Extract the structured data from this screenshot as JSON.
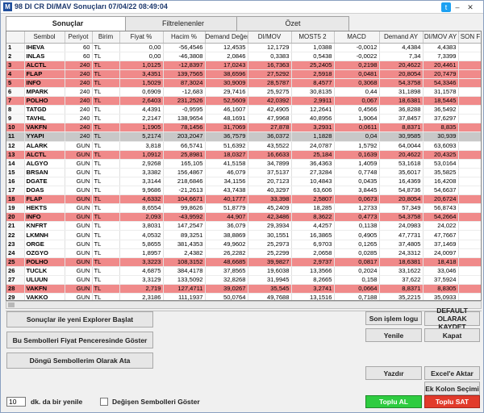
{
  "window": {
    "title": "98 DI CR DI/MAV Sonuçları  07/04/22 08:49:04",
    "logo": "M"
  },
  "tabs": [
    {
      "label": "Sonuçlar",
      "active": true
    },
    {
      "label": "Filtrelenenler",
      "active": false
    },
    {
      "label": "Özet",
      "active": false
    }
  ],
  "table": {
    "headers": [
      "",
      "Sembol",
      "Periyot",
      "Birim",
      "Fiyat %",
      "Hacim %",
      "Demand Değer",
      "DI/MOV",
      "MOST5 2",
      "MACD",
      "Demand AY",
      "DI/MOV AY",
      "SON F"
    ],
    "rows": [
      {
        "n": "1",
        "s": "IHEVA",
        "p": "60",
        "b": "TL",
        "v": [
          "0,00",
          "-56,4546",
          "12,4535",
          "12,1729",
          "1,0388",
          "-0,0012",
          "4,4384",
          "4,4383"
        ],
        "style": ""
      },
      {
        "n": "2",
        "s": "INLAS",
        "p": "60",
        "b": "TL",
        "v": [
          "0,00",
          "-46,3808",
          "2,0846",
          "0,3383",
          "0,5438",
          "-0,0022",
          "7,34",
          "7,3399"
        ],
        "style": ""
      },
      {
        "n": "3",
        "s": "ALCTL",
        "p": "240",
        "b": "TL",
        "v": [
          "1,0125",
          "-12,8397",
          "17,0243",
          "16,7363",
          "25,2405",
          "0,2198",
          "20,4622",
          "20,4461"
        ],
        "style": "red"
      },
      {
        "n": "4",
        "s": "FLAP",
        "p": "240",
        "b": "TL",
        "v": [
          "3,4351",
          "139,7565",
          "38,6596",
          "27,5292",
          "2,5918",
          "0,0481",
          "20,8054",
          "20,7479"
        ],
        "style": "red"
      },
      {
        "n": "5",
        "s": "INFO",
        "p": "240",
        "b": "TL",
        "v": [
          "1,5029",
          "87,3024",
          "30,9009",
          "28,5787",
          "8,4577",
          "0,3068",
          "54,3758",
          "54,3346"
        ],
        "style": "red"
      },
      {
        "n": "6",
        "s": "MPARK",
        "p": "240",
        "b": "TL",
        "v": [
          "0,6909",
          "-12,683",
          "29,7416",
          "25,9275",
          "30,8135",
          "0,44",
          "31,1898",
          "31,1578"
        ],
        "style": ""
      },
      {
        "n": "7",
        "s": "POLHO",
        "p": "240",
        "b": "TL",
        "v": [
          "2,6403",
          "231,2526",
          "52,5609",
          "42,0392",
          "2,9911",
          "0,067",
          "18,6381",
          "18,5445"
        ],
        "style": "red"
      },
      {
        "n": "8",
        "s": "TATGD",
        "p": "240",
        "b": "TL",
        "v": [
          "4,4391",
          "-0,9595",
          "46,1607",
          "42,4905",
          "12,2641",
          "0,4566",
          "36,8288",
          "36,5492"
        ],
        "style": ""
      },
      {
        "n": "9",
        "s": "TAVHL",
        "p": "240",
        "b": "TL",
        "v": [
          "2,2147",
          "138,9654",
          "48,1691",
          "47,9968",
          "40,8956",
          "1,9064",
          "37,8457",
          "37,6297"
        ],
        "style": ""
      },
      {
        "n": "10",
        "s": "VAKFN",
        "p": "240",
        "b": "TL",
        "v": [
          "1,1905",
          "78,1456",
          "31,7069",
          "27,878",
          "3,2931",
          "0,0611",
          "8,8371",
          "8,835"
        ],
        "style": "red"
      },
      {
        "n": "11",
        "s": "YYAPI",
        "p": "240",
        "b": "TL",
        "v": [
          "5,2174",
          "203,2047",
          "36,7579",
          "36,0372",
          "1,1828",
          "0,04",
          "30,9585",
          "30,939"
        ],
        "style": "gray"
      },
      {
        "n": "12",
        "s": "ALARK",
        "p": "GUN",
        "b": "TL",
        "v": [
          "3,818",
          "66,5741",
          "51,6392",
          "43,5522",
          "24,0787",
          "1,5792",
          "64,0044",
          "63,6093"
        ],
        "style": ""
      },
      {
        "n": "13",
        "s": "ALCTL",
        "p": "GUN",
        "b": "TL",
        "v": [
          "1,0912",
          "25,8981",
          "18,0327",
          "16,6633",
          "25,184",
          "0,1639",
          "20,4622",
          "20,4325"
        ],
        "style": "red"
      },
      {
        "n": "14",
        "s": "ALGYO",
        "p": "GUN",
        "b": "TL",
        "v": [
          "2,9268",
          "165,105",
          "41,5158",
          "34,7899",
          "36,4363",
          "1,4059",
          "53,1618",
          "53,0164"
        ],
        "style": ""
      },
      {
        "n": "15",
        "s": "BRSAN",
        "p": "GUN",
        "b": "TL",
        "v": [
          "3,3382",
          "156,4867",
          "46,079",
          "37,5137",
          "27,3284",
          "0,7748",
          "35,6017",
          "35,5825"
        ],
        "style": ""
      },
      {
        "n": "16",
        "s": "DGATE",
        "p": "GUN",
        "b": "TL",
        "v": [
          "3,3144",
          "218,6846",
          "34,1156",
          "20,7123",
          "10,4843",
          "0,0435",
          "16,4369",
          "16,4208"
        ],
        "style": ""
      },
      {
        "n": "17",
        "s": "DOAS",
        "p": "GUN",
        "b": "TL",
        "v": [
          "9,9686",
          "-21,2613",
          "43,7438",
          "40,3297",
          "63,606",
          "3,8445",
          "54,8736",
          "54,6637"
        ],
        "style": ""
      },
      {
        "n": "18",
        "s": "FLAP",
        "p": "GUN",
        "b": "TL",
        "v": [
          "4,6332",
          "104,6671",
          "40,1777",
          "33,398",
          "2,5807",
          "0,0673",
          "20,8054",
          "20,6724"
        ],
        "style": "red"
      },
      {
        "n": "19",
        "s": "HEKTS",
        "p": "GUN",
        "b": "TL",
        "v": [
          "8,6554",
          "99,8626",
          "51,8779",
          "45,2409",
          "18,285",
          "1,2733",
          "57,349",
          "56,8743"
        ],
        "style": ""
      },
      {
        "n": "20",
        "s": "INFO",
        "p": "GUN",
        "b": "TL",
        "v": [
          "2,093",
          "-43,9592",
          "44,907",
          "42,3486",
          "8,3622",
          "0,4773",
          "54,3758",
          "54,2664"
        ],
        "style": "red"
      },
      {
        "n": "21",
        "s": "KNFRT",
        "p": "GUN",
        "b": "TL",
        "v": [
          "3,8031",
          "147,2547",
          "36,079",
          "29,3934",
          "4,4257",
          "0,1138",
          "24,0983",
          "24,022"
        ],
        "style": ""
      },
      {
        "n": "22",
        "s": "LKMNH",
        "p": "GUN",
        "b": "TL",
        "v": [
          "4,0532",
          "89,3251",
          "38,8869",
          "30,1551",
          "16,3865",
          "0,4905",
          "47,7731",
          "47,7667"
        ],
        "style": ""
      },
      {
        "n": "23",
        "s": "ORGE",
        "p": "GUN",
        "b": "TL",
        "v": [
          "5,8655",
          "381,4353",
          "49,9602",
          "25,2973",
          "6,9703",
          "0,1265",
          "37,4805",
          "37,1469"
        ],
        "style": ""
      },
      {
        "n": "24",
        "s": "OZGYO",
        "p": "GUN",
        "b": "TL",
        "v": [
          "1,8957",
          "2,4382",
          "26,2282",
          "25,2299",
          "2,0658",
          "0,0285",
          "24,3312",
          "24,0097"
        ],
        "style": ""
      },
      {
        "n": "25",
        "s": "POLHO",
        "p": "GUN",
        "b": "TL",
        "v": [
          "3,3223",
          "108,3152",
          "48,6685",
          "39,9827",
          "2,9737",
          "0,0817",
          "18,6381",
          "18,418"
        ],
        "style": "red"
      },
      {
        "n": "26",
        "s": "TUCLK",
        "p": "GUN",
        "b": "TL",
        "v": [
          "4,6875",
          "384,4178",
          "37,8565",
          "19,6038",
          "13,3566",
          "0,2024",
          "33,1622",
          "33,046"
        ],
        "style": ""
      },
      {
        "n": "27",
        "s": "ULUUN",
        "p": "GUN",
        "b": "TL",
        "v": [
          "3,3129",
          "133,5092",
          "32,8268",
          "31,9945",
          "8,2665",
          "0,158",
          "37,622",
          "37,5924"
        ],
        "style": ""
      },
      {
        "n": "28",
        "s": "VAKFN",
        "p": "GUN",
        "b": "TL",
        "v": [
          "2,719",
          "127,4711",
          "39,0267",
          "35,545",
          "3,2741",
          "0,0664",
          "8,8371",
          "8,8305"
        ],
        "style": "red"
      },
      {
        "n": "29",
        "s": "VAKKO",
        "p": "GUN",
        "b": "TL",
        "v": [
          "2,3186",
          "111,1937",
          "50,0764",
          "49,7688",
          "13,1516",
          "0,7188",
          "35,2215",
          "35,0933"
        ],
        "style": ""
      }
    ]
  },
  "buttons": {
    "explorer": "Sonuçlar ile yeni Explorer Başlat",
    "fiyat": "Bu Sembolleri Fiyat Penceresinde Göster",
    "dongu": "Döngü Sembollerim Olarak Ata",
    "son_islem": "Son işlem logu",
    "default": "DEFAULT OLARAK KAYDET",
    "yenile": "Yenile",
    "kapat": "Kapat",
    "yazdir": "Yazdır",
    "excel": "Excel'e Aktar",
    "kolon": "Ek Kolon Seçimi",
    "toplu_al": "Toplu AL",
    "toplu_sat": "Toplu SAT"
  },
  "refresh": {
    "value": "10",
    "label": "dk. da bir yenile"
  },
  "degisen": {
    "label": "Değişen Sembolleri Göster"
  },
  "colors": {
    "highlight_red": "#f08a8a",
    "highlight_gray": "#c8c8c8",
    "buy": "#2ecc40",
    "sell": "#e23b2b"
  }
}
